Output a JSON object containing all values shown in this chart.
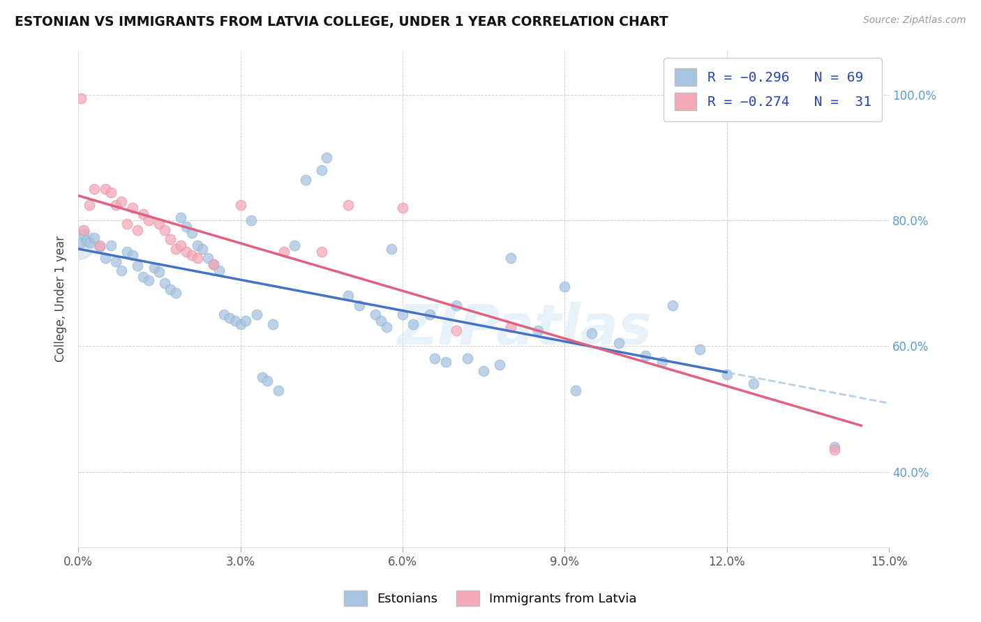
{
  "title": "ESTONIAN VS IMMIGRANTS FROM LATVIA COLLEGE, UNDER 1 YEAR CORRELATION CHART",
  "source": "Source: ZipAtlas.com",
  "ylabel": "College, Under 1 year",
  "xlim": [
    0.0,
    15.0
  ],
  "ylim": [
    28.0,
    107.0
  ],
  "xticks": [
    0,
    3,
    6,
    9,
    12,
    15
  ],
  "xticklabels": [
    "0.0%",
    "3.0%",
    "6.0%",
    "9.0%",
    "12.0%",
    "15.0%"
  ],
  "yticks": [
    40,
    60,
    80,
    100
  ],
  "yticklabels": [
    "40.0%",
    "60.0%",
    "80.0%",
    "100.0%"
  ],
  "legend_entries": [
    "Estonians",
    "Immigrants from Latvia"
  ],
  "color_blue": "#a8c4e0",
  "color_pink": "#f4a8b8",
  "line_blue": "#4472c4",
  "line_pink": "#e06080",
  "line_blue_dash": "#b8d0e8",
  "watermark": "ZIPatlas",
  "blue_points": [
    [
      0.05,
      76.5
    ],
    [
      0.1,
      77.8
    ],
    [
      0.15,
      76.8
    ],
    [
      0.2,
      76.5
    ],
    [
      0.3,
      77.2
    ],
    [
      0.4,
      75.8
    ],
    [
      0.5,
      74.0
    ],
    [
      0.6,
      76.0
    ],
    [
      0.7,
      73.5
    ],
    [
      0.8,
      72.0
    ],
    [
      0.9,
      75.0
    ],
    [
      1.0,
      74.5
    ],
    [
      1.1,
      72.8
    ],
    [
      1.2,
      71.0
    ],
    [
      1.3,
      70.5
    ],
    [
      1.4,
      72.5
    ],
    [
      1.5,
      71.8
    ],
    [
      1.6,
      70.0
    ],
    [
      1.7,
      69.0
    ],
    [
      1.8,
      68.5
    ],
    [
      1.9,
      80.5
    ],
    [
      2.0,
      79.0
    ],
    [
      2.1,
      78.0
    ],
    [
      2.2,
      76.0
    ],
    [
      2.3,
      75.5
    ],
    [
      2.4,
      74.0
    ],
    [
      2.5,
      73.0
    ],
    [
      2.6,
      72.0
    ],
    [
      2.7,
      65.0
    ],
    [
      2.8,
      64.5
    ],
    [
      2.9,
      64.0
    ],
    [
      3.0,
      63.5
    ],
    [
      3.1,
      64.0
    ],
    [
      3.2,
      80.0
    ],
    [
      3.3,
      65.0
    ],
    [
      3.4,
      55.0
    ],
    [
      3.5,
      54.5
    ],
    [
      3.6,
      63.5
    ],
    [
      3.7,
      53.0
    ],
    [
      4.0,
      76.0
    ],
    [
      4.2,
      86.5
    ],
    [
      4.5,
      88.0
    ],
    [
      4.6,
      90.0
    ],
    [
      5.0,
      68.0
    ],
    [
      5.2,
      66.5
    ],
    [
      5.5,
      65.0
    ],
    [
      5.6,
      64.0
    ],
    [
      5.7,
      63.0
    ],
    [
      5.8,
      75.5
    ],
    [
      6.0,
      65.0
    ],
    [
      6.2,
      63.5
    ],
    [
      6.5,
      65.0
    ],
    [
      6.6,
      58.0
    ],
    [
      6.8,
      57.5
    ],
    [
      7.0,
      66.5
    ],
    [
      7.2,
      58.0
    ],
    [
      7.5,
      56.0
    ],
    [
      7.8,
      57.0
    ],
    [
      8.0,
      74.0
    ],
    [
      8.5,
      62.5
    ],
    [
      9.0,
      69.5
    ],
    [
      9.2,
      53.0
    ],
    [
      9.5,
      62.0
    ],
    [
      10.0,
      60.5
    ],
    [
      10.5,
      58.5
    ],
    [
      10.8,
      57.5
    ],
    [
      11.0,
      66.5
    ],
    [
      11.5,
      59.5
    ],
    [
      12.0,
      55.5
    ],
    [
      12.5,
      54.0
    ],
    [
      14.0,
      44.0
    ]
  ],
  "pink_points": [
    [
      0.05,
      99.5
    ],
    [
      0.1,
      78.5
    ],
    [
      0.2,
      82.5
    ],
    [
      0.3,
      85.0
    ],
    [
      0.4,
      76.0
    ],
    [
      0.5,
      85.0
    ],
    [
      0.6,
      84.5
    ],
    [
      0.7,
      82.5
    ],
    [
      0.8,
      83.0
    ],
    [
      0.9,
      79.5
    ],
    [
      1.0,
      82.0
    ],
    [
      1.1,
      78.5
    ],
    [
      1.2,
      81.0
    ],
    [
      1.3,
      80.0
    ],
    [
      1.5,
      79.5
    ],
    [
      1.6,
      78.5
    ],
    [
      1.7,
      77.0
    ],
    [
      1.8,
      75.5
    ],
    [
      1.9,
      76.0
    ],
    [
      2.0,
      75.0
    ],
    [
      2.1,
      74.5
    ],
    [
      2.2,
      74.0
    ],
    [
      2.5,
      73.0
    ],
    [
      3.0,
      82.5
    ],
    [
      3.8,
      75.0
    ],
    [
      4.5,
      75.0
    ],
    [
      5.0,
      82.5
    ],
    [
      6.0,
      82.0
    ],
    [
      7.0,
      62.5
    ],
    [
      8.0,
      63.0
    ],
    [
      14.0,
      43.5
    ]
  ],
  "blue_solid_end": 12.0,
  "pink_solid_end": 14.5
}
